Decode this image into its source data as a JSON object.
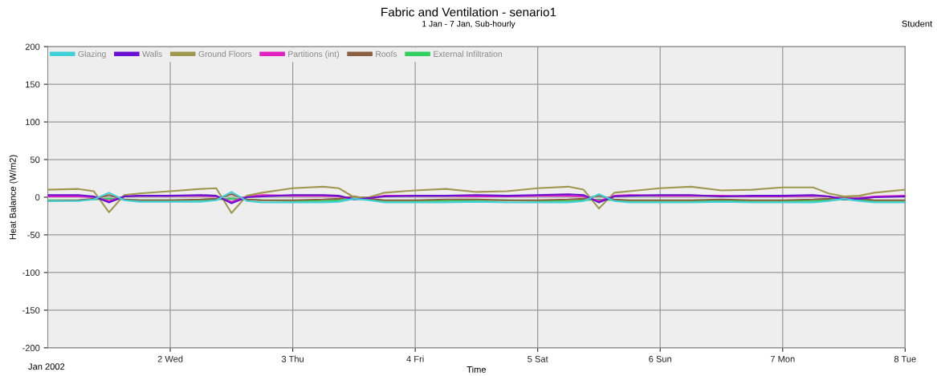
{
  "chart_data": {
    "type": "line",
    "title": "Fabric and Ventilation - senario1",
    "subtitle": "1 Jan - 7 Jan, Sub-hourly",
    "xlabel": "Time",
    "ylabel": "Heat Balance (W/m2)",
    "annotations": [
      "Student",
      "Jan 2002"
    ],
    "x": [
      "2002-01-01T00:00",
      "2002-01-01T06:00",
      "2002-01-01T09:00",
      "2002-01-01T12:00",
      "2002-01-01T15:00",
      "2002-01-01T18:00",
      "2002-01-02T00:00",
      "2002-01-02T06:00",
      "2002-01-02T09:00",
      "2002-01-02T12:00",
      "2002-01-02T15:00",
      "2002-01-02T18:00",
      "2002-01-03T00:00",
      "2002-01-03T06:00",
      "2002-01-03T09:00",
      "2002-01-03T12:00",
      "2002-01-03T15:00",
      "2002-01-03T18:00",
      "2002-01-04T00:00",
      "2002-01-04T06:00",
      "2002-01-04T12:00",
      "2002-01-04T18:00",
      "2002-01-05T00:00",
      "2002-01-05T06:00",
      "2002-01-05T09:00",
      "2002-01-05T12:00",
      "2002-01-05T15:00",
      "2002-01-05T18:00",
      "2002-01-06T00:00",
      "2002-01-06T06:00",
      "2002-01-06T12:00",
      "2002-01-06T18:00",
      "2002-01-07T00:00",
      "2002-01-07T06:00",
      "2002-01-07T09:00",
      "2002-01-07T12:00",
      "2002-01-07T15:00",
      "2002-01-07T18:00",
      "2002-01-08T00:00"
    ],
    "series": [
      {
        "name": "Glazing",
        "color": "#40d0d8",
        "values": [
          -5,
          -5,
          -3,
          6,
          -4,
          -6,
          -6,
          -6,
          -4,
          7,
          -5,
          -7,
          -7,
          -7,
          -6,
          -2,
          -4,
          -7,
          -7,
          -7,
          -6,
          -7,
          -7,
          -7,
          -5,
          4,
          -5,
          -7,
          -7,
          -7,
          -6,
          -7,
          -7,
          -7,
          -5,
          -2,
          -5,
          -7,
          -7
        ]
      },
      {
        "name": "Walls",
        "color": "#6a10d0",
        "values": [
          3,
          3,
          1,
          -7,
          1,
          2,
          2,
          3,
          2,
          -8,
          0,
          1,
          3,
          3,
          2,
          -3,
          -1,
          1,
          2,
          2,
          3,
          2,
          3,
          4,
          3,
          -7,
          1,
          2,
          3,
          3,
          1,
          2,
          2,
          3,
          1,
          -3,
          -2,
          0,
          1
        ]
      },
      {
        "name": "Ground Floors",
        "color": "#a09850",
        "values": [
          10,
          11,
          8,
          -20,
          3,
          5,
          8,
          11,
          12,
          -21,
          2,
          6,
          12,
          14,
          12,
          0,
          0,
          6,
          9,
          11,
          7,
          8,
          12,
          14,
          10,
          -15,
          6,
          8,
          12,
          14,
          9,
          10,
          13,
          13,
          5,
          1,
          2,
          6,
          10
        ]
      },
      {
        "name": "Partitions (int)",
        "color": "#e020c0",
        "values": [
          1,
          1,
          0,
          -5,
          1,
          2,
          2,
          2,
          1,
          -6,
          1,
          3,
          2,
          2,
          1,
          -2,
          -1,
          2,
          2,
          2,
          1,
          1,
          2,
          2,
          1,
          -5,
          2,
          3,
          2,
          2,
          2,
          1,
          1,
          2,
          1,
          -2,
          -1,
          1,
          2
        ]
      },
      {
        "name": "Roofs",
        "color": "#8a6040",
        "values": [
          -5,
          -4,
          -2,
          3,
          -3,
          -4,
          -4,
          -3,
          -2,
          4,
          -3,
          -4,
          -4,
          -3,
          -2,
          1,
          -2,
          -4,
          -4,
          -3,
          -3,
          -4,
          -4,
          -3,
          -2,
          2,
          -3,
          -4,
          -4,
          -4,
          -3,
          -4,
          -4,
          -3,
          -2,
          0,
          -2,
          -4,
          -4
        ]
      },
      {
        "name": "External Infiltration",
        "color": "#30d060",
        "values": [
          -4,
          -4,
          -3,
          -2,
          -3,
          -4,
          -4,
          -4,
          -3,
          -2,
          -3,
          -4,
          -5,
          -5,
          -4,
          -2,
          -3,
          -5,
          -5,
          -5,
          -4,
          -4,
          -5,
          -5,
          -4,
          -3,
          -4,
          -5,
          -5,
          -5,
          -5,
          -5,
          -5,
          -5,
          -4,
          -3,
          -4,
          -5,
          -5
        ]
      }
    ],
    "xlim": [
      "2002-01-01T00:00",
      "2002-01-08T00:00"
    ],
    "xticks": [
      {
        "value": "2002-01-02",
        "label": "2 Wed"
      },
      {
        "value": "2002-01-03",
        "label": "3 Thu"
      },
      {
        "value": "2002-01-04",
        "label": "4 Fri"
      },
      {
        "value": "2002-01-05",
        "label": "5 Sat"
      },
      {
        "value": "2002-01-06",
        "label": "6 Sun"
      },
      {
        "value": "2002-01-07",
        "label": "7 Mon"
      },
      {
        "value": "2002-01-08",
        "label": "8 Tue"
      }
    ],
    "ylim": [
      -200,
      200
    ],
    "yticks": [
      -200,
      -150,
      -100,
      -50,
      0,
      50,
      100,
      150,
      200
    ],
    "grid": true,
    "legend": "top left",
    "marker": "none",
    "line_style": "solid"
  }
}
